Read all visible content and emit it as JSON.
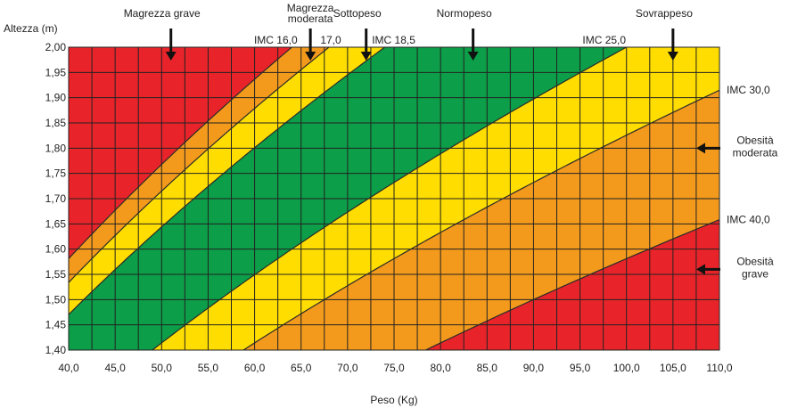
{
  "chart_data": {
    "type": "area",
    "title": "",
    "xlabel": "Peso (Kg)",
    "ylabel": "Altezza (m)",
    "xlim": [
      40,
      110
    ],
    "ylim": [
      1.4,
      2.0
    ],
    "grid": true,
    "x_ticks": [
      "40,0",
      "45,0",
      "50,0",
      "55,0",
      "60,0",
      "65,0",
      "70,0",
      "75,0",
      "80,0",
      "85,0",
      "90,0",
      "95,0",
      "100,0",
      "105,0",
      "110,0"
    ],
    "y_ticks": [
      "1,40",
      "1,45",
      "1,50",
      "1,55",
      "1,60",
      "1,65",
      "1,70",
      "1,75",
      "1,80",
      "1,85",
      "1,90",
      "1,95",
      "2,00"
    ],
    "bmi_thresholds": [
      {
        "bmi": 16.0,
        "label": "IMC 16,0"
      },
      {
        "bmi": 17.0,
        "label": "17,0"
      },
      {
        "bmi": 18.5,
        "label": "IMC 18,5"
      },
      {
        "bmi": 25.0,
        "label": "IMC 25,0"
      },
      {
        "bmi": 30.0,
        "label": "IMC 30,0"
      },
      {
        "bmi": 40.0,
        "label": "IMC 40,0"
      }
    ],
    "zones": [
      {
        "label": "Magrezza grave",
        "bmi_min": 0,
        "bmi_max": 16.0,
        "color": "#e8242a"
      },
      {
        "label": "Magrezza moderata",
        "bmi_min": 16.0,
        "bmi_max": 17.0,
        "color": "#f39a1c"
      },
      {
        "label": "Sottopeso",
        "bmi_min": 17.0,
        "bmi_max": 18.5,
        "color": "#ffdd00"
      },
      {
        "label": "Normopeso",
        "bmi_min": 18.5,
        "bmi_max": 25.0,
        "color": "#0c9e48"
      },
      {
        "label": "Sovrappeso",
        "bmi_min": 25.0,
        "bmi_max": 30.0,
        "color": "#ffdd00"
      },
      {
        "label": "Obesità moderata",
        "bmi_min": 30.0,
        "bmi_max": 40.0,
        "color": "#f39a1c"
      },
      {
        "label": "Obesità grave",
        "bmi_min": 40.0,
        "bmi_max": 999,
        "color": "#e8242a"
      }
    ],
    "top_annotations": [
      {
        "lines": [
          "Magrezza grave"
        ],
        "weight": 51.0
      },
      {
        "lines": [
          "Magrezza",
          "moderata"
        ],
        "weight": 66.0
      },
      {
        "lines": [
          "Sottopeso"
        ],
        "weight": 72.0
      },
      {
        "lines": [
          "Normopeso"
        ],
        "weight": 83.5
      },
      {
        "lines": [
          "Sovrappeso"
        ],
        "weight": 105.0
      }
    ],
    "right_annotations": [
      {
        "lines": [
          "Obesità",
          "moderata"
        ],
        "height": 1.8
      },
      {
        "lines": [
          "Obesità",
          "grave"
        ],
        "height": 1.56
      }
    ]
  }
}
